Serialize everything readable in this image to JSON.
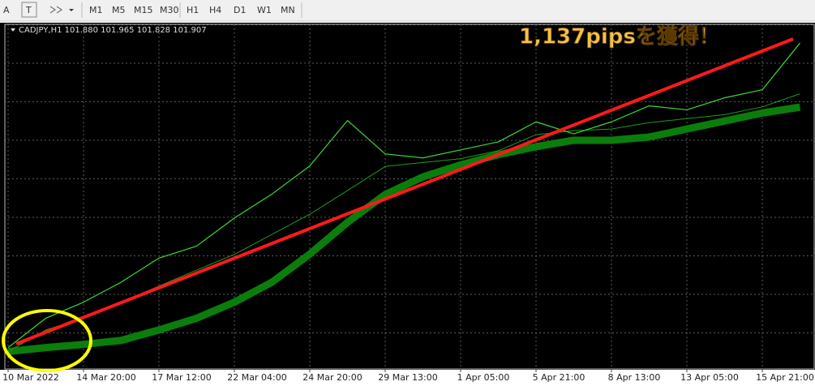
{
  "toolbar": {
    "buttons": [
      "A",
      "T",
      "M1",
      "M5",
      "M15",
      "M30",
      "H1",
      "H4",
      "D1",
      "W1",
      "MN"
    ]
  },
  "chart_data": {
    "type": "line",
    "header": "CADJPY,H1  101.880 101.965 101.828 101.907",
    "annotation": "1,137pipsを獲得！",
    "categories": [
      "10 Mar 2022",
      null,
      "14 Mar 20:00",
      null,
      "17 Mar 12:00",
      null,
      "22 Mar 04:00",
      null,
      "24 Mar 20:00",
      null,
      "29 Mar 13:00",
      null,
      "1 Apr 05:00",
      null,
      "5 Apr 21:00",
      null,
      "8 Apr 13:00",
      null,
      "13 Apr 05:00",
      null,
      "15 Apr 21:00",
      null
    ],
    "ylim": [
      89.7,
      102.6
    ],
    "series": [
      {
        "color": "#0b7d0b",
        "width": 9,
        "values": [
          90.35,
          90.5,
          90.62,
          90.77,
          91.16,
          91.6,
          92.2,
          92.95,
          94.0,
          95.19,
          96.23,
          96.89,
          97.34,
          97.72,
          98.02,
          98.26,
          98.26,
          98.38,
          98.68,
          98.98,
          99.28,
          99.5
        ]
      },
      {
        "color": "#1f9a1f",
        "width": 1,
        "values": [
          90.35,
          91.16,
          91.6,
          92.2,
          92.8,
          93.4,
          93.99,
          94.74,
          95.49,
          96.38,
          97.28,
          97.43,
          97.57,
          97.87,
          98.47,
          98.62,
          98.68,
          98.92,
          99.07,
          99.22,
          99.51,
          100.0
        ]
      },
      {
        "color": "#3ad83a",
        "width": 1.2,
        "values": [
          90.5,
          91.6,
          92.2,
          92.95,
          93.85,
          94.3,
          95.35,
          96.25,
          97.3,
          99.0,
          97.75,
          97.6,
          97.9,
          98.2,
          98.95,
          98.5,
          98.95,
          99.55,
          99.4,
          99.85,
          100.15,
          101.9
        ]
      }
    ]
  }
}
